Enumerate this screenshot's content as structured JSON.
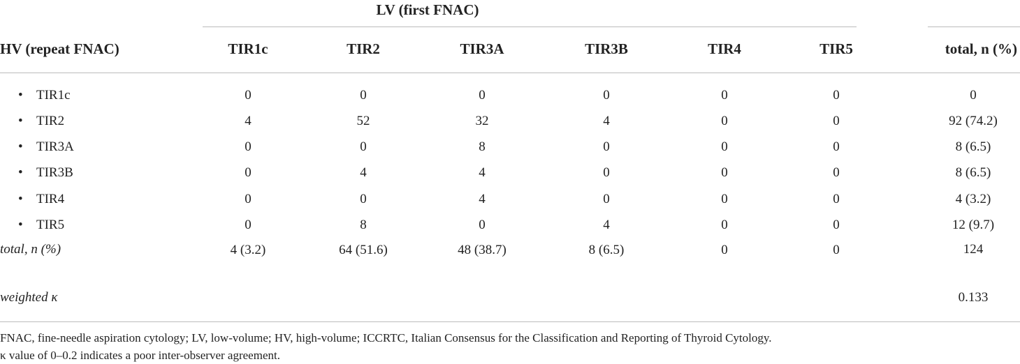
{
  "table": {
    "group_header": "LV (first FNAC)",
    "row_header": "HV (repeat FNAC)",
    "columns": [
      "TIR1c",
      "TIR2",
      "TIR3A",
      "TIR3B",
      "TIR4",
      "TIR5"
    ],
    "total_header": "total, n (%)",
    "rows": [
      {
        "label": "TIR1c",
        "cells": [
          "0",
          "0",
          "0",
          "0",
          "0",
          "0"
        ],
        "total": "0"
      },
      {
        "label": "TIR2",
        "cells": [
          "4",
          "52",
          "32",
          "4",
          "0",
          "0"
        ],
        "total": "92 (74.2)"
      },
      {
        "label": "TIR3A",
        "cells": [
          "0",
          "0",
          "8",
          "0",
          "0",
          "0"
        ],
        "total": "8 (6.5)"
      },
      {
        "label": "TIR3B",
        "cells": [
          "0",
          "4",
          "4",
          "0",
          "0",
          "0"
        ],
        "total": "8 (6.5)"
      },
      {
        "label": "TIR4",
        "cells": [
          "0",
          "0",
          "4",
          "0",
          "0",
          "0"
        ],
        "total": "4 (3.2)"
      },
      {
        "label": "TIR5",
        "cells": [
          "0",
          "8",
          "0",
          "4",
          "0",
          "0"
        ],
        "total": "12 (9.7)"
      }
    ],
    "total_row": {
      "label": "total, n (%)",
      "cells": [
        "4 (3.2)",
        "64 (51.6)",
        "48 (38.7)",
        "8 (6.5)",
        "0",
        "0"
      ],
      "total": "124"
    },
    "kappa_row": {
      "label": "weighted κ",
      "total": "0.133"
    }
  },
  "footnotes": [
    "FNAC, fine-needle aspiration cytology; LV, low-volume; HV, high-volume; ICCRTC, Italian Consensus for the Classification and Reporting of Thyroid Cytology.",
    "κ value of 0–0.2 indicates a poor inter-observer agreement."
  ]
}
